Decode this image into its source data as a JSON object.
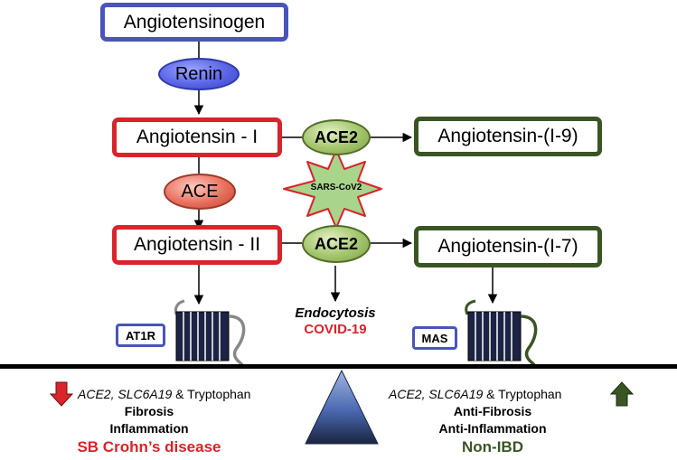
{
  "nodes": {
    "angiotensinogen": "Angiotensinogen",
    "renin": "Renin",
    "angiotensin_i": "Angiotensin - I",
    "ace": "ACE",
    "angiotensin_ii": "Angiotensin - II",
    "ace2_top": "ACE2",
    "ace2_bottom": "ACE2",
    "angiotensin_1_9": "Angiotensin-(I-9)",
    "angiotensin_1_7": "Angiotensin-(I-7)",
    "sars_cov2": "SARS-CoV2"
  },
  "receptors": {
    "at1r": "AT1R",
    "mas": "MAS"
  },
  "center": {
    "endocytosis": "Endocytosis",
    "covid": "COVID-19"
  },
  "left": {
    "genes": "ACE2, SLC6A19",
    "genes_suffix": " & Tryptophan",
    "line1": "Fibrosis",
    "line2": "Inflammation",
    "title": "SB Crohn’s disease"
  },
  "right": {
    "genes": "ACE2, SLC6A19",
    "genes_suffix": " & Tryptophan",
    "line1": "Anti-Fibrosis",
    "line2": "Anti-Inflammation",
    "title": "Non-IBD"
  },
  "colors": {
    "blue": "#4a55b8",
    "red": "#d8242a",
    "green": "#3a5524",
    "balance_blue": "#4a68b0"
  }
}
